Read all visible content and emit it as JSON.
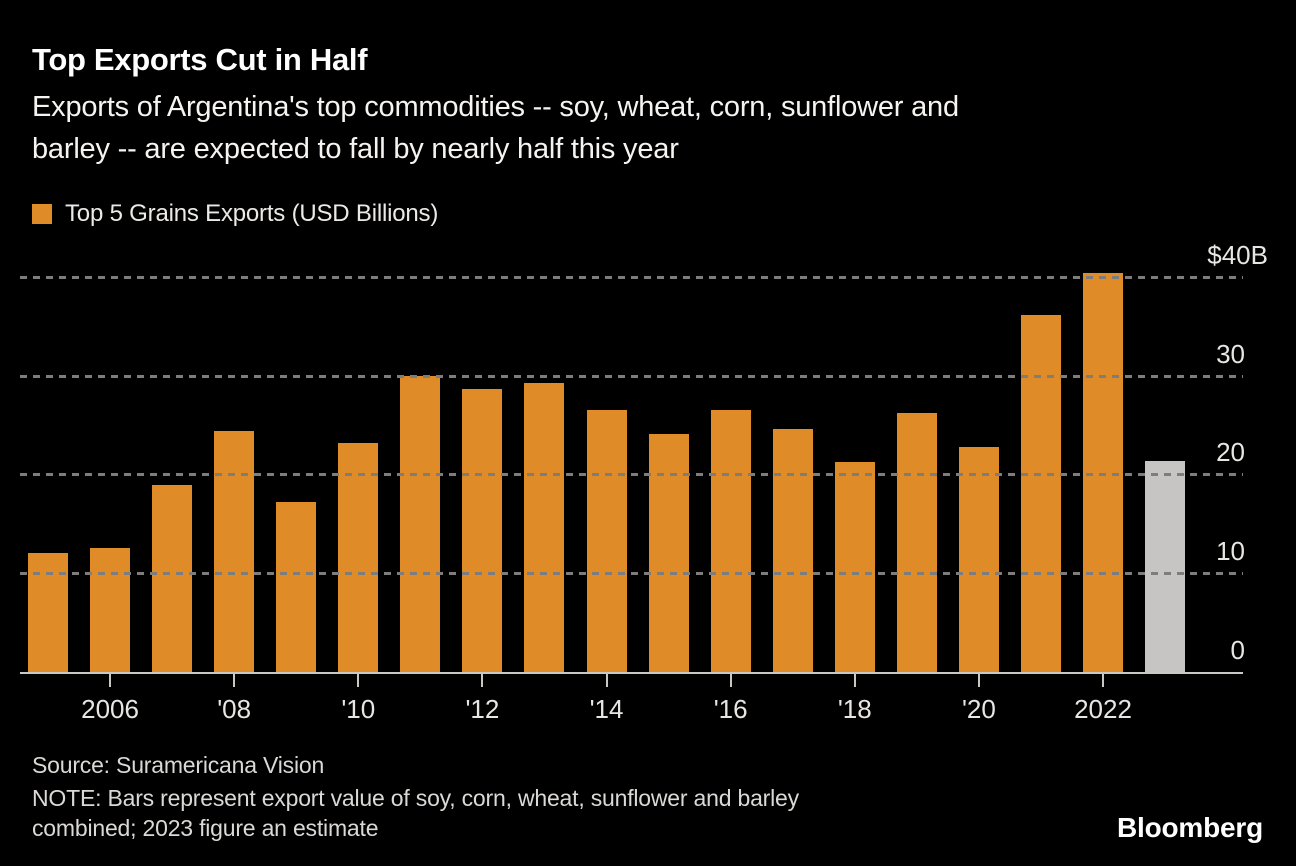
{
  "header": {
    "title": "Top Exports Cut in Half",
    "subtitle_line1": "Exports of Argentina's top commodities -- soy, wheat, corn, sunflower and",
    "subtitle_line2": "barley -- are expected to fall by nearly half this year"
  },
  "legend": {
    "label": "Top 5 Grains Exports (USD Billions)",
    "swatch_color": "#df8c28"
  },
  "chart_data": {
    "type": "bar",
    "title": "Top Exports Cut in Half",
    "ylabel": "USD Billions",
    "ylim": [
      0,
      40
    ],
    "grid": "horizontal-dashed",
    "legend_position": "top-left",
    "background_color": "#000000",
    "bar_color": "#df8c28",
    "estimate_bar_color": "#c6c5c3",
    "estimate_year": 2023,
    "series": [
      {
        "name": "Top 5 Grains Exports (USD Billions)",
        "x": [
          2005,
          2006,
          2007,
          2008,
          2009,
          2010,
          2011,
          2012,
          2013,
          2014,
          2015,
          2016,
          2017,
          2018,
          2019,
          2020,
          2021,
          2022,
          2023
        ],
        "values": [
          12.0,
          12.6,
          18.9,
          24.4,
          17.2,
          23.2,
          30.0,
          28.7,
          29.3,
          26.5,
          24.1,
          26.5,
          24.6,
          21.3,
          26.2,
          22.8,
          36.1,
          40.4,
          21.4
        ]
      }
    ],
    "yticks": [
      {
        "value": 40,
        "label": "$40B"
      },
      {
        "value": 30,
        "label": "30"
      },
      {
        "value": 20,
        "label": "20"
      },
      {
        "value": 10,
        "label": "10"
      },
      {
        "value": 0,
        "label": "0"
      }
    ],
    "xticks": [
      {
        "year": 2006,
        "label": "2006"
      },
      {
        "year": 2008,
        "label": "'08"
      },
      {
        "year": 2010,
        "label": "'10"
      },
      {
        "year": 2012,
        "label": "'12"
      },
      {
        "year": 2014,
        "label": "'14"
      },
      {
        "year": 2016,
        "label": "'16"
      },
      {
        "year": 2018,
        "label": "'18"
      },
      {
        "year": 2020,
        "label": "'20"
      },
      {
        "year": 2022,
        "label": "2022"
      }
    ]
  },
  "footer": {
    "source": "Source: Suramericana Vision",
    "note_line1": "NOTE: Bars represent export value of soy, corn, wheat, sunflower and barley",
    "note_line2": "combined; 2023 figure an estimate",
    "brand": "Bloomberg"
  }
}
